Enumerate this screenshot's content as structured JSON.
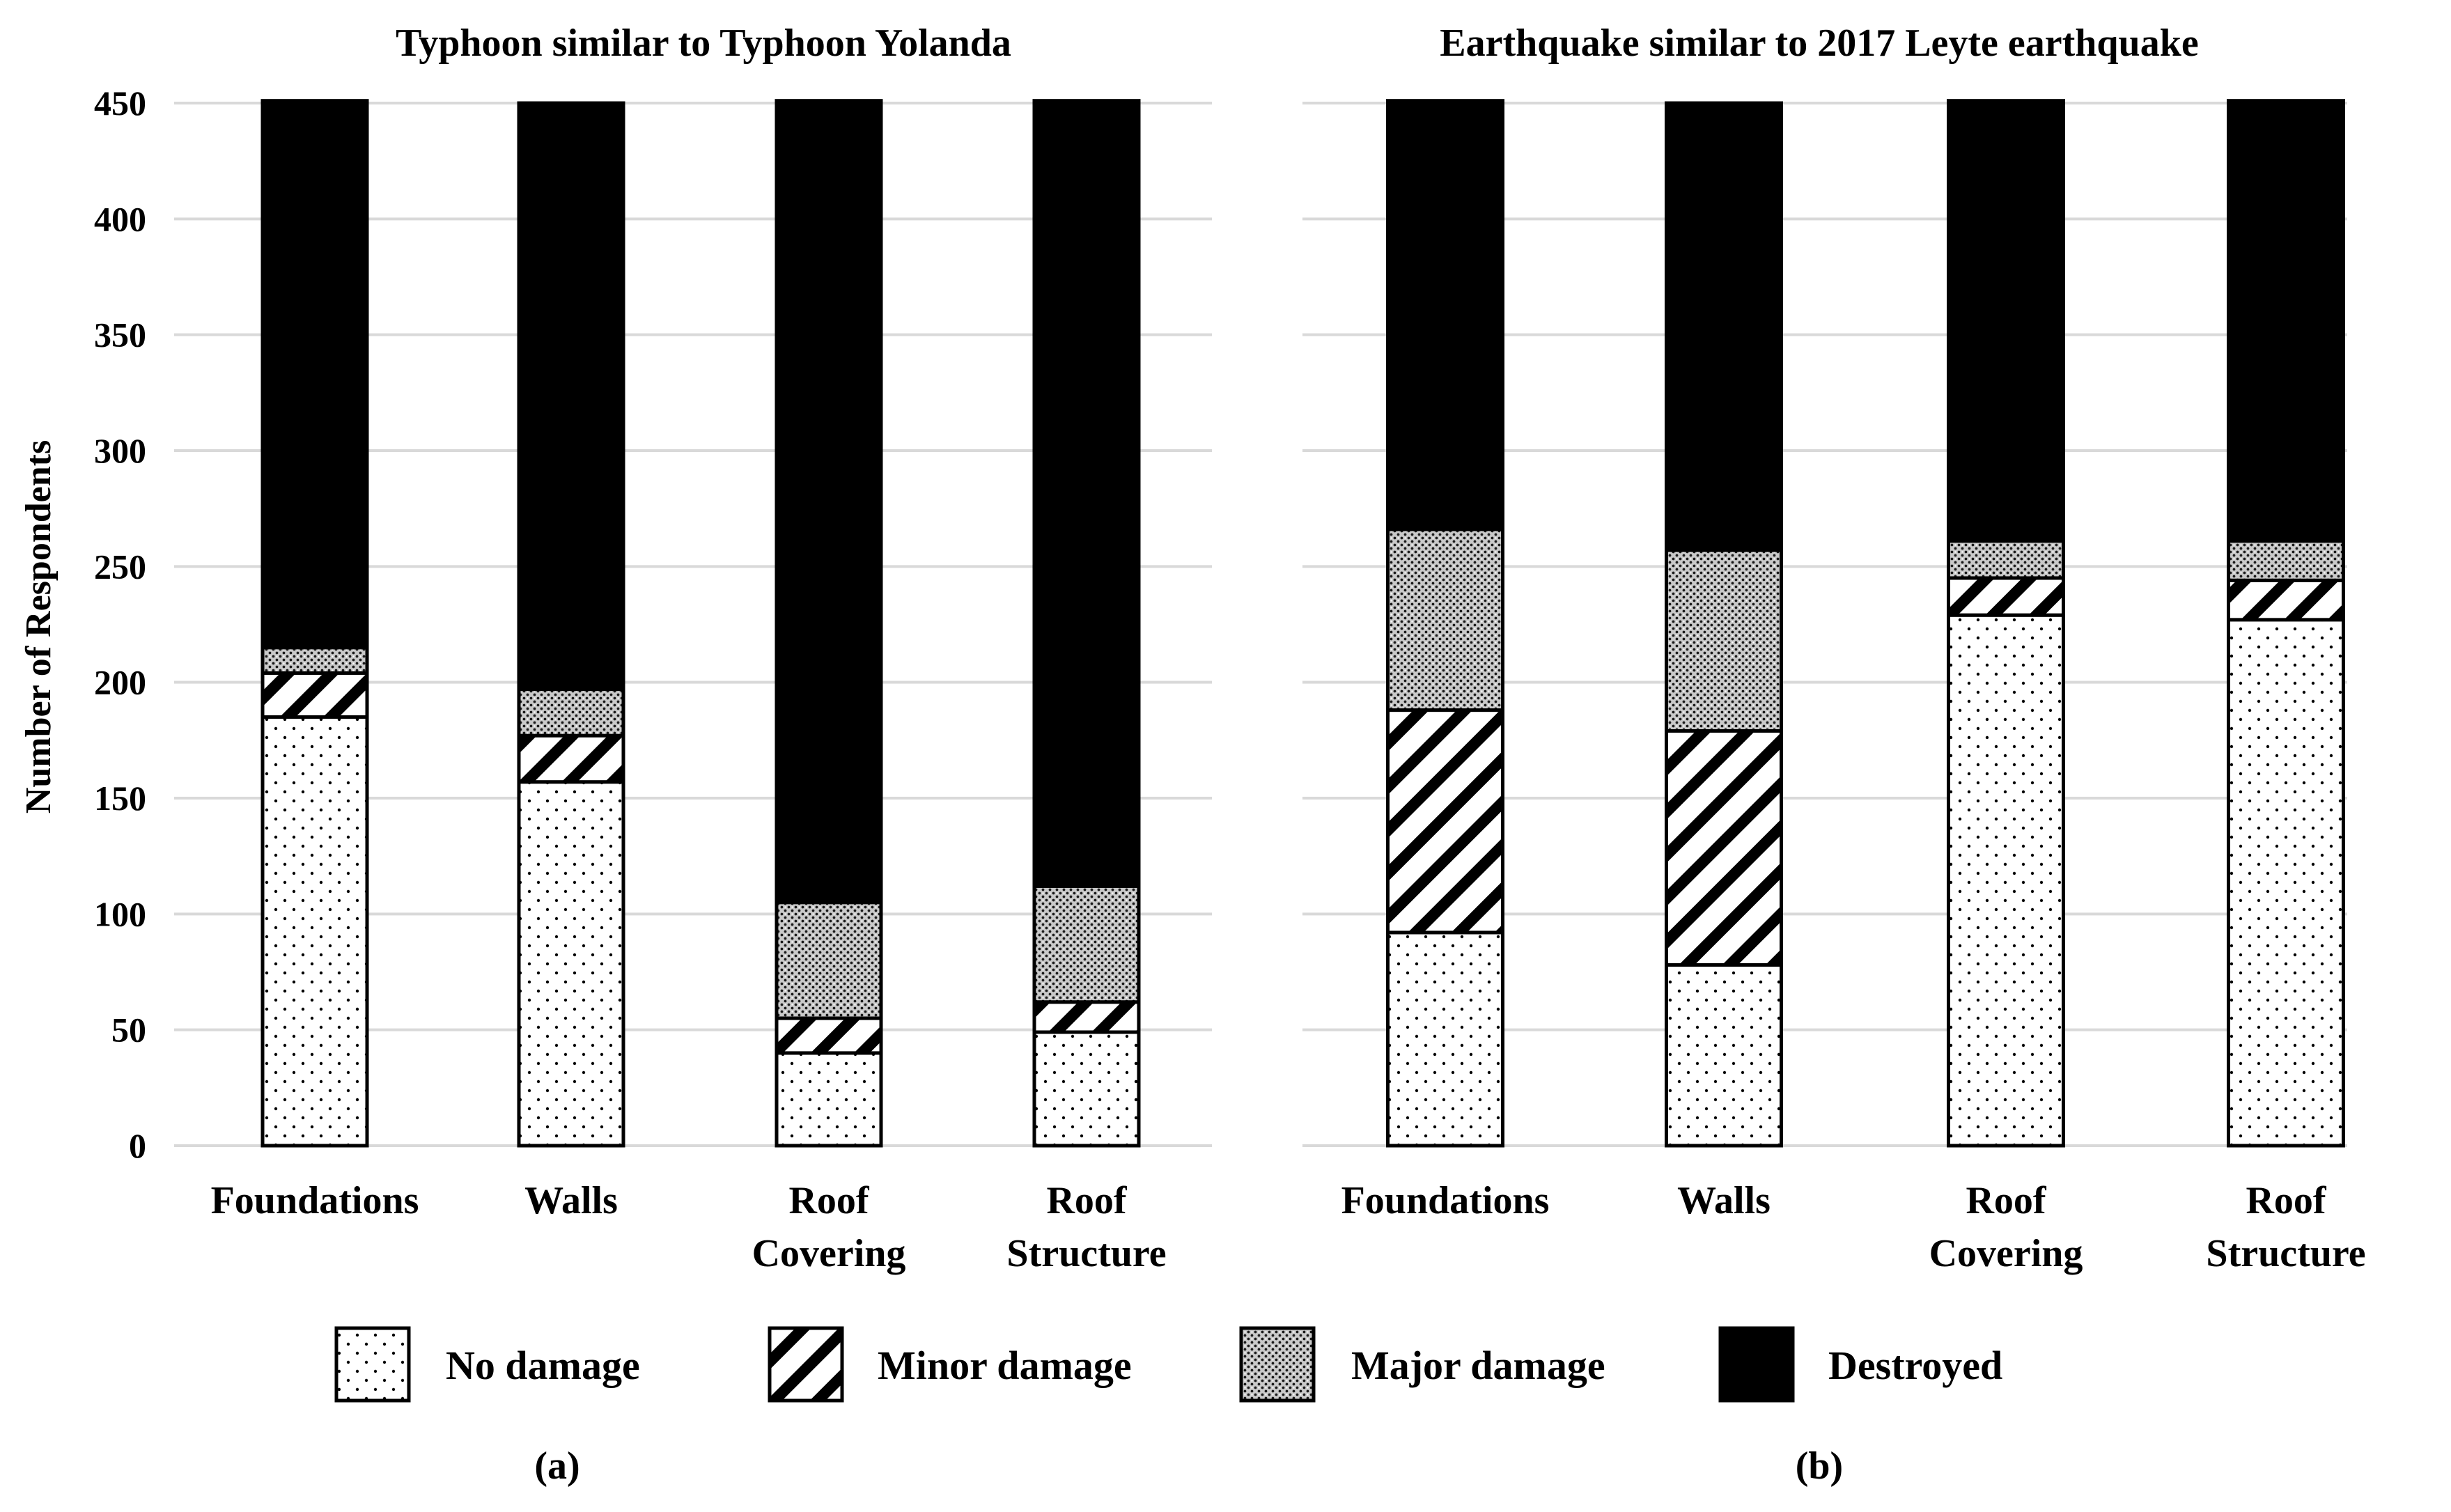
{
  "ylabel": "Number of Respondents",
  "yticks": [
    0,
    50,
    100,
    150,
    200,
    250,
    300,
    350,
    400,
    450
  ],
  "segments": [
    "No damage",
    "Minor damage",
    "Major damage",
    "Destroyed"
  ],
  "legend": [
    {
      "label": "No damage",
      "pattern": "dots"
    },
    {
      "label": "Minor damage",
      "pattern": "hatch"
    },
    {
      "label": "Major damage",
      "pattern": "dense-dots"
    },
    {
      "label": "Destroyed",
      "pattern": "solid"
    }
  ],
  "colors": {
    "ink": "#000000",
    "grid": "#d9d9d9",
    "background": "#ffffff"
  },
  "chart_data": [
    {
      "type": "bar",
      "stacked": true,
      "title": "Typhoon similar to Typhoon Yolanda",
      "panel_label": "(a)",
      "xlabel": "",
      "ylabel": "Number of Respondents",
      "ylim": [
        0,
        450
      ],
      "grid": true,
      "categories": [
        [
          "Foundations"
        ],
        [
          "Walls"
        ],
        [
          "Roof",
          "Covering"
        ],
        [
          "Roof",
          "Structure"
        ]
      ],
      "series": [
        {
          "name": "No damage",
          "values": [
            185,
            157,
            40,
            49
          ]
        },
        {
          "name": "Minor damage",
          "values": [
            19,
            20,
            15,
            13
          ]
        },
        {
          "name": "Major damage",
          "values": [
            11,
            20,
            50,
            50
          ]
        },
        {
          "name": "Destroyed",
          "values": [
            236,
            253,
            346,
            339
          ]
        }
      ]
    },
    {
      "type": "bar",
      "stacked": true,
      "title": "Earthquake similar to 2017 Leyte earthquake",
      "panel_label": "(b)",
      "xlabel": "",
      "ylabel": "",
      "ylim": [
        0,
        450
      ],
      "grid": true,
      "categories": [
        [
          "Foundations"
        ],
        [
          "Walls"
        ],
        [
          "Roof",
          "Covering"
        ],
        [
          "Roof",
          "Structure"
        ]
      ],
      "series": [
        {
          "name": "No damage",
          "values": [
            92,
            78,
            229,
            227
          ]
        },
        {
          "name": "Minor damage",
          "values": [
            96,
            101,
            16,
            17
          ]
        },
        {
          "name": "Major damage",
          "values": [
            78,
            78,
            16,
            17
          ]
        },
        {
          "name": "Destroyed",
          "values": [
            185,
            193,
            190,
            190
          ]
        }
      ]
    }
  ]
}
